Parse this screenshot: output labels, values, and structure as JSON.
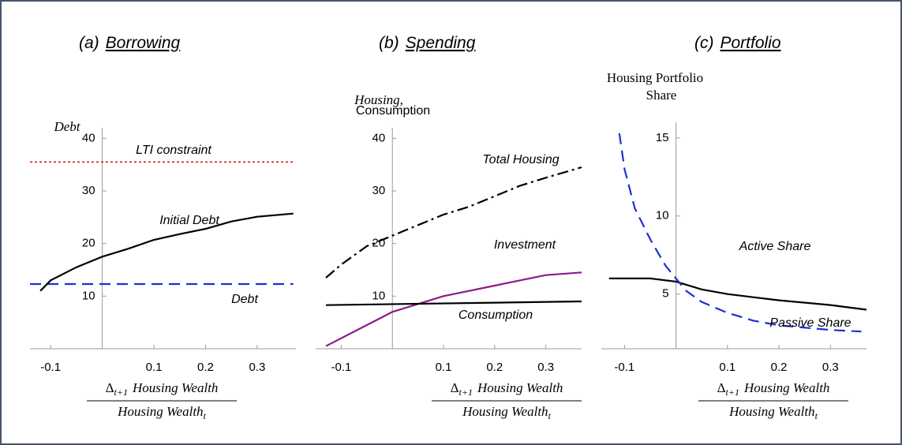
{
  "chart_data": [
    {
      "type": "line",
      "panel": "(a)",
      "title": "Borrowing",
      "ylabel": [
        "Debt"
      ],
      "xlabel": {
        "numerator_symbol": "Δ",
        "numerator_sub": "t+1",
        "numerator": "Housing Wealth",
        "denominator": "Housing Wealth",
        "denominator_sub": "t"
      },
      "xlim": [
        -0.14,
        0.375
      ],
      "ylim": [
        0,
        42
      ],
      "xticks": [
        -0.1,
        0.1,
        0.2,
        0.3
      ],
      "yticks": [
        10,
        20,
        30,
        40
      ],
      "series": [
        {
          "name": "LTI constraint",
          "color": "#d0202a",
          "linestyle": "dotted",
          "x": [
            -0.14,
            0.37
          ],
          "values": [
            35.5,
            35.5
          ]
        },
        {
          "name": "Initial Debt",
          "color": "#1f2fd0",
          "linestyle": "dashed",
          "x": [
            -0.14,
            0.37
          ],
          "values": [
            12.3,
            12.3
          ]
        },
        {
          "name": "Debt",
          "color": "#000000",
          "linestyle": "solid",
          "x": [
            -0.12,
            -0.1,
            -0.05,
            0,
            0.05,
            0.1,
            0.15,
            0.2,
            0.25,
            0.3,
            0.37
          ],
          "values": [
            11,
            13,
            15.5,
            17.5,
            19,
            20.7,
            21.8,
            22.8,
            24.2,
            25.1,
            25.7
          ]
        }
      ]
    },
    {
      "type": "line",
      "panel": "(b)",
      "title": "Spending",
      "ylabel": [
        "Housing,",
        "Consumption"
      ],
      "xlabel": {
        "numerator_symbol": "Δ",
        "numerator_sub": "t+1",
        "numerator": "Housing Wealth",
        "denominator": "Housing Wealth",
        "denominator_sub": "t"
      },
      "xlim": [
        -0.15,
        0.37
      ],
      "ylim": [
        0,
        42
      ],
      "xticks": [
        -0.1,
        0.1,
        0.2,
        0.3
      ],
      "yticks": [
        10,
        20,
        30,
        40
      ],
      "series": [
        {
          "name": "Total Housing",
          "color": "#000000",
          "linestyle": "dashdot",
          "x": [
            -0.13,
            -0.1,
            -0.05,
            0,
            0.05,
            0.1,
            0.15,
            0.2,
            0.25,
            0.3,
            0.37
          ],
          "values": [
            13.5,
            16,
            19.5,
            21.5,
            23.5,
            25.5,
            27,
            29,
            31,
            32.5,
            34.5
          ]
        },
        {
          "name": "Investment",
          "color": "#8b1a8b",
          "linestyle": "solid",
          "x": [
            -0.13,
            -0.1,
            -0.05,
            -0.02,
            0,
            0.05,
            0.1,
            0.15,
            0.2,
            0.25,
            0.3,
            0.37
          ],
          "values": [
            0.5,
            2,
            4.5,
            6,
            7,
            8.5,
            10,
            11,
            12,
            13,
            14,
            14.5
          ]
        },
        {
          "name": "Consumption",
          "color": "#000000",
          "linestyle": "solid",
          "x": [
            -0.13,
            0.37
          ],
          "values": [
            8.3,
            9
          ]
        }
      ]
    },
    {
      "type": "line",
      "panel": "(c)",
      "title": "Portfolio",
      "ylabel": [
        "Housing Portfolio",
        "Share"
      ],
      "xlabel": {
        "numerator_symbol": "Δ",
        "numerator_sub": "t+1",
        "numerator": "Housing Wealth",
        "denominator": "Housing Wealth",
        "denominator_sub": "t"
      },
      "xlim": [
        -0.145,
        0.37
      ],
      "ylim": [
        1.5,
        16
      ],
      "xticks": [
        -0.1,
        0.1,
        0.2,
        0.3
      ],
      "yticks": [
        5,
        10,
        15
      ],
      "series": [
        {
          "name": "Active Share",
          "color": "#000000",
          "linestyle": "solid",
          "x": [
            -0.13,
            -0.05,
            0,
            0.05,
            0.1,
            0.15,
            0.2,
            0.3,
            0.37
          ],
          "values": [
            6,
            6,
            5.8,
            5.3,
            5,
            4.8,
            4.6,
            4.3,
            4
          ]
        },
        {
          "name": "Passive Share",
          "color": "#1f2fd0",
          "linestyle": "dashed",
          "x": [
            -0.11,
            -0.1,
            -0.08,
            -0.05,
            -0.02,
            0,
            0.02,
            0.05,
            0.1,
            0.15,
            0.2,
            0.3,
            0.36
          ],
          "values": [
            15.3,
            13,
            10.5,
            8.5,
            6.8,
            6,
            5.2,
            4.5,
            3.8,
            3.3,
            3,
            2.7,
            2.6
          ]
        }
      ]
    }
  ]
}
